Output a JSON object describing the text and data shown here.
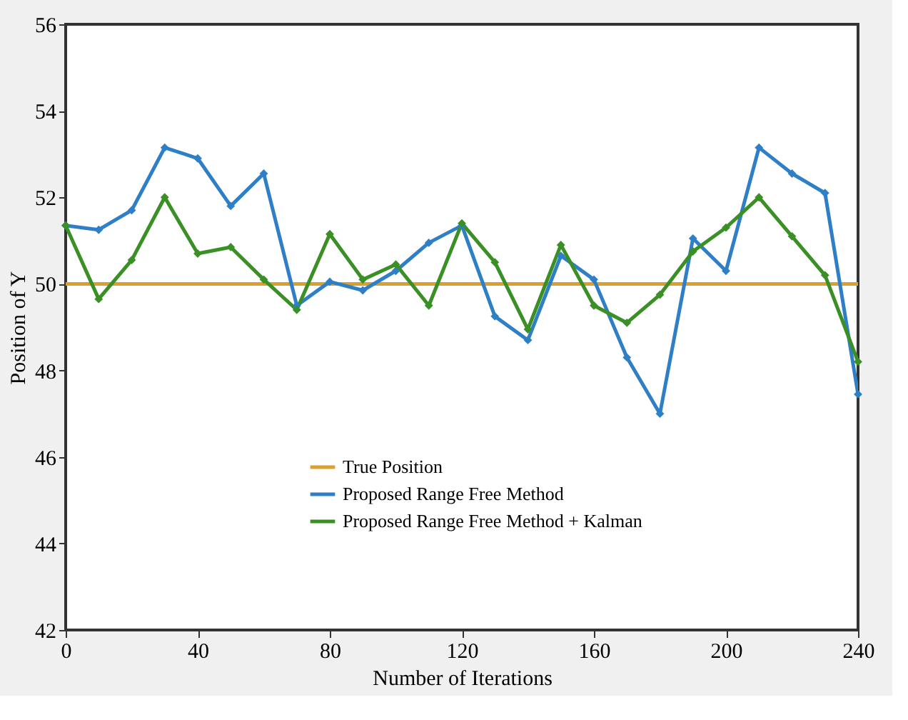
{
  "chart_data": {
    "type": "line",
    "xlabel": "Number of Iterations",
    "ylabel": "Position of Y",
    "x": [
      0,
      10,
      20,
      30,
      40,
      50,
      60,
      70,
      80,
      90,
      100,
      110,
      120,
      130,
      140,
      150,
      160,
      170,
      180,
      190,
      200,
      210,
      220,
      230,
      240
    ],
    "series": [
      {
        "name": "True Position",
        "color": "#d9a031",
        "marker": "none",
        "values": [
          50,
          50,
          50,
          50,
          50,
          50,
          50,
          50,
          50,
          50,
          50,
          50,
          50,
          50,
          50,
          50,
          50,
          50,
          50,
          50,
          50,
          50,
          50,
          50,
          50
        ]
      },
      {
        "name": "Proposed Range Free Method",
        "color": "#2f7fc6",
        "marker": "diamond",
        "values": [
          51.35,
          51.25,
          51.7,
          53.15,
          52.9,
          51.8,
          52.55,
          49.5,
          50.05,
          49.85,
          50.3,
          50.95,
          51.35,
          49.25,
          48.7,
          50.65,
          50.1,
          48.3,
          47.0,
          51.05,
          50.3,
          53.15,
          52.55,
          52.1,
          47.45
        ]
      },
      {
        "name": "Proposed Range Free Method + Kalman",
        "color": "#3a8f25",
        "marker": "diamond",
        "values": [
          51.35,
          49.65,
          50.55,
          52.0,
          50.7,
          50.85,
          50.1,
          49.4,
          51.15,
          50.1,
          50.45,
          49.5,
          51.4,
          50.5,
          48.95,
          50.9,
          49.5,
          49.1,
          49.75,
          50.75,
          51.3,
          52.0,
          51.1,
          50.2,
          48.2
        ]
      }
    ],
    "xlim": [
      0,
      240
    ],
    "xticks": [
      0,
      40,
      80,
      120,
      160,
      200,
      240
    ],
    "ylim": [
      42,
      56
    ],
    "yticks": [
      42,
      44,
      46,
      48,
      50,
      52,
      54,
      56
    ],
    "grid": false,
    "legend": "bottom",
    "line_style": "solid"
  }
}
